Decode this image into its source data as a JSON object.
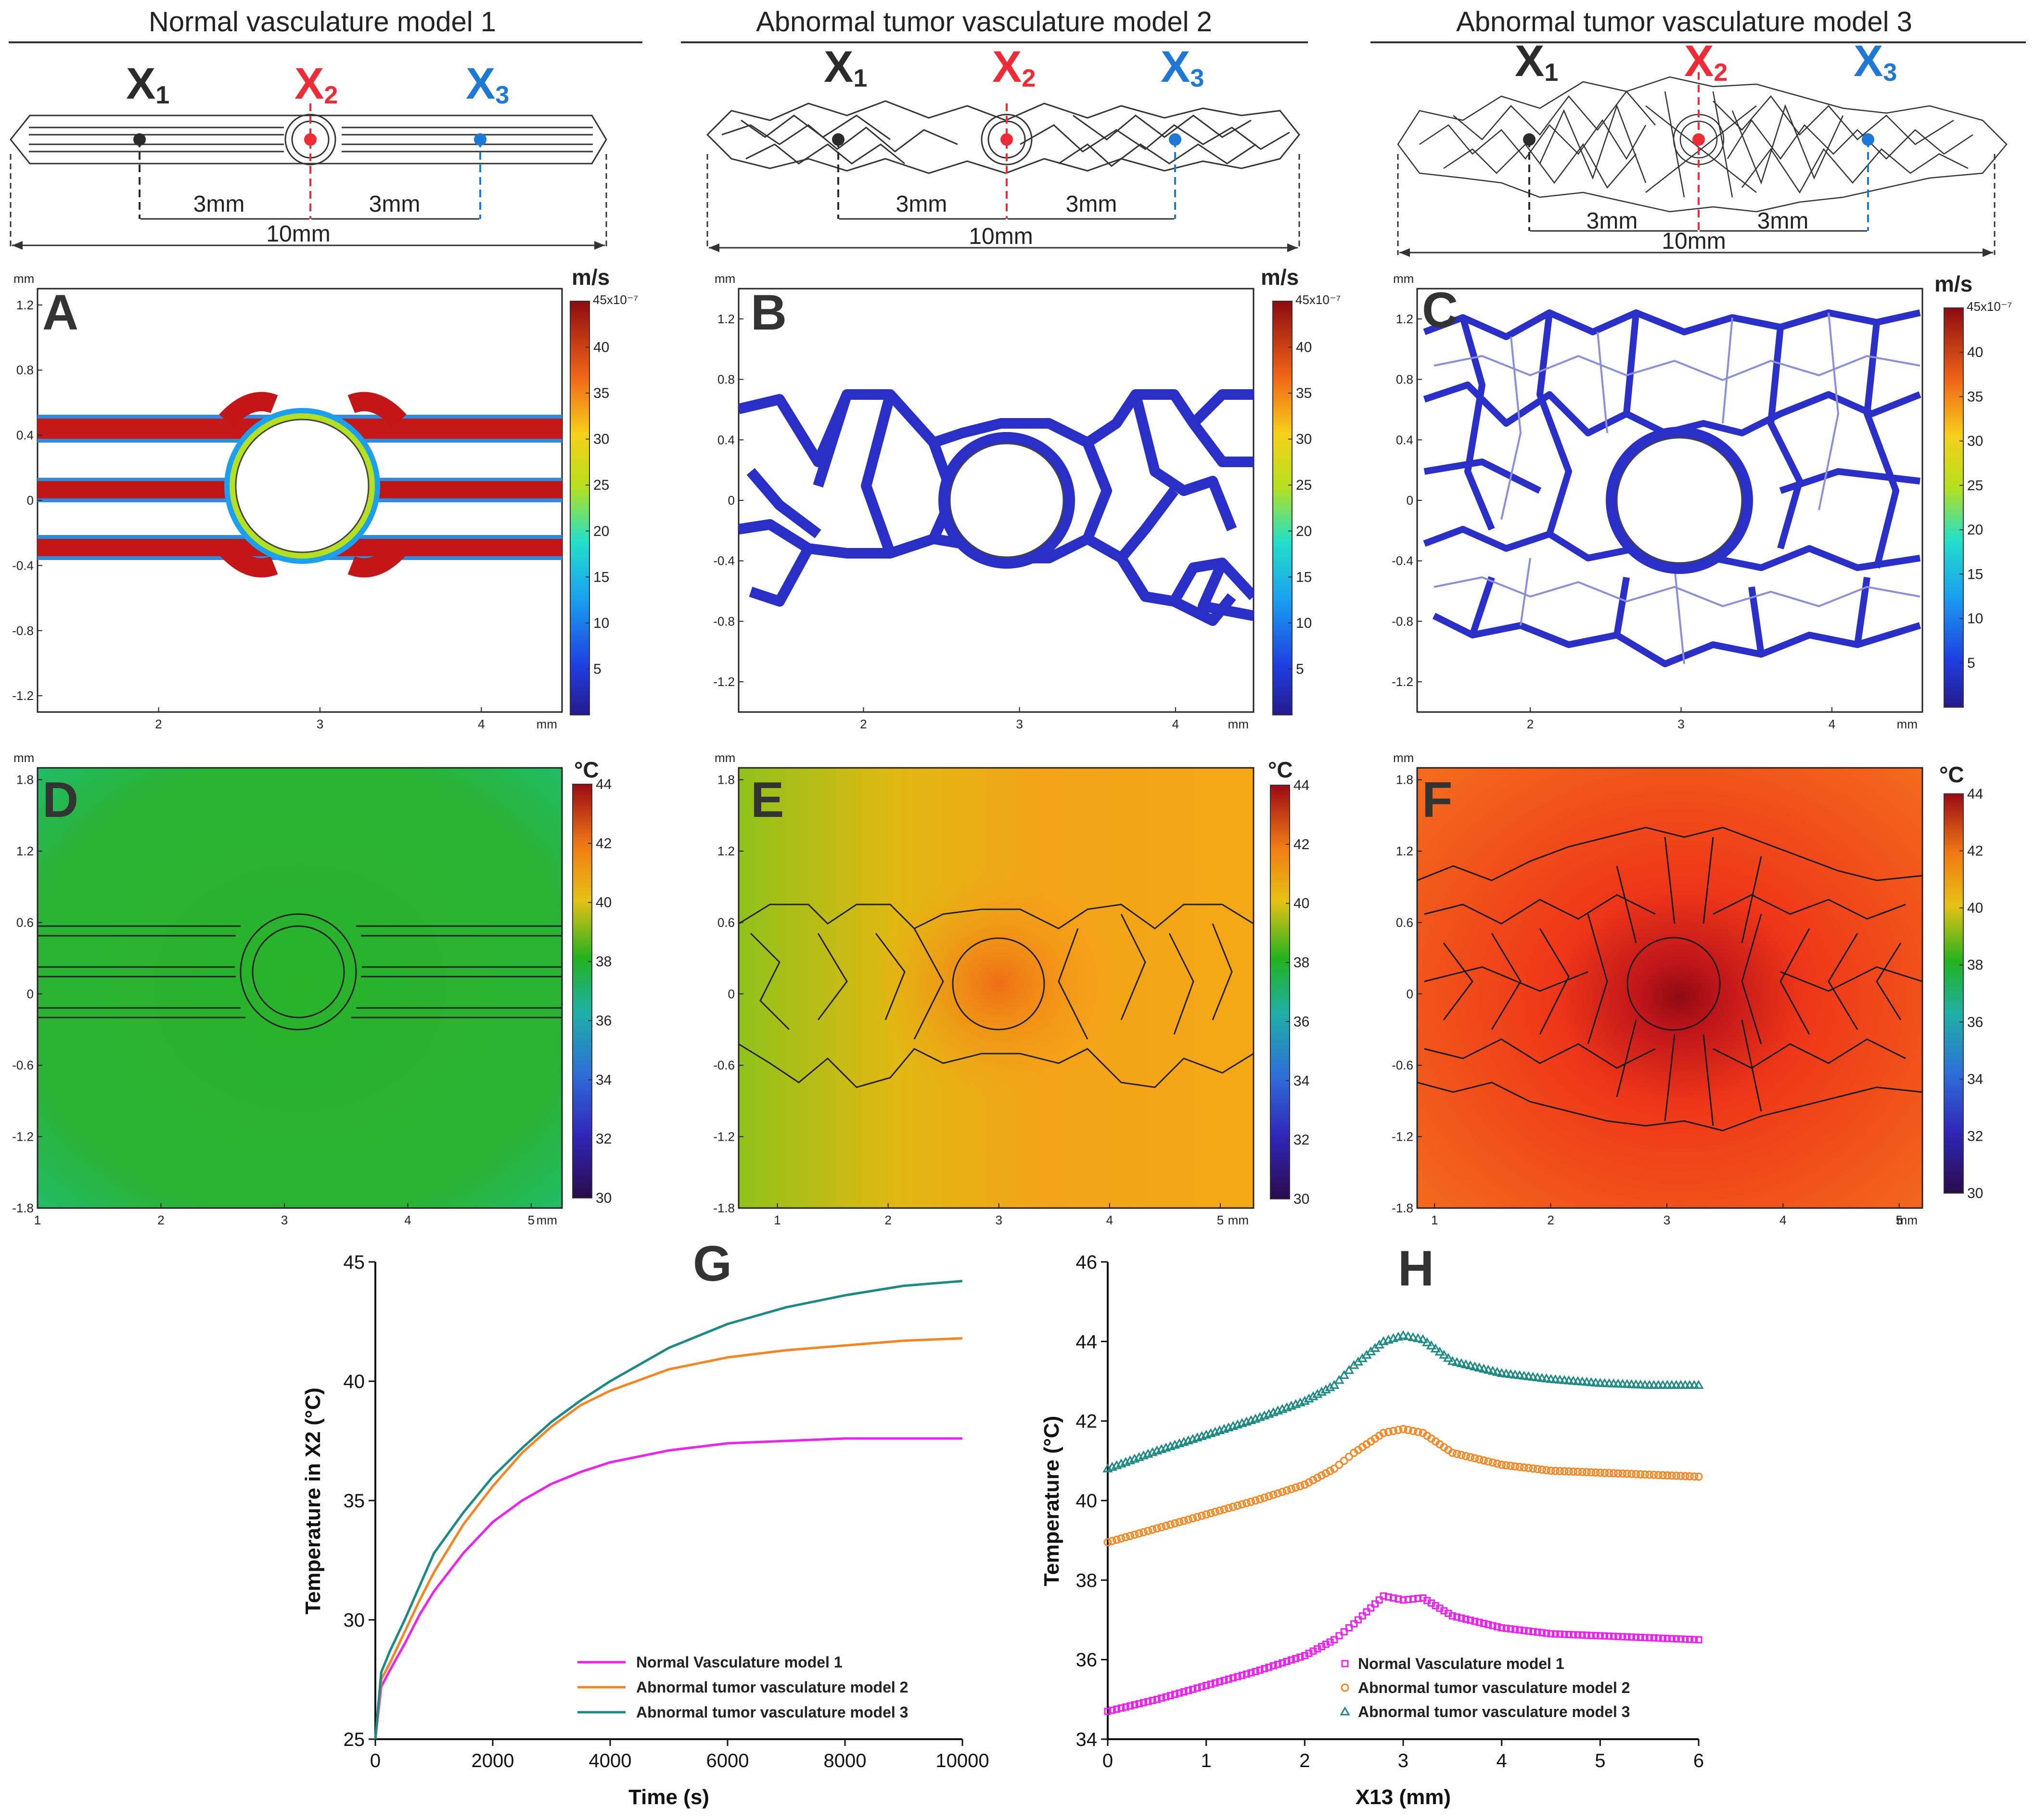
{
  "titles": [
    "Normal vasculature model 1",
    "Abnormal tumor vasculature model 2",
    "Abnormal tumor vasculature model 3"
  ],
  "markers": {
    "x1": "X",
    "x2": "X",
    "x3": "X",
    "s1": "1",
    "s2": "2",
    "s3": "3"
  },
  "dims": {
    "left": "3mm",
    "right": "3mm",
    "total": "10mm"
  },
  "panel_labels": {
    "A": "A",
    "B": "B",
    "C": "C",
    "D": "D",
    "E": "E",
    "F": "F",
    "G": "G",
    "H": "H"
  },
  "units": {
    "velocity": "m/s",
    "temperature": "°C",
    "mm": "mm",
    "scale": "45x10⁻⁷"
  },
  "colorbars": {
    "velocity_ticks": [
      "40",
      "35",
      "30",
      "25",
      "20",
      "15",
      "10",
      "5"
    ],
    "temp_ticks": [
      "44",
      "42",
      "40",
      "38",
      "36",
      "34",
      "32",
      "30"
    ]
  },
  "flow_axes": {
    "y_ticks": [
      "1.2",
      "0.8",
      "0.4",
      "0",
      "-0.4",
      "-0.8",
      "-1.2"
    ],
    "x_ticks": [
      "2",
      "3",
      "4"
    ]
  },
  "temp_axes": {
    "y_ticks": [
      "1.8",
      "1.2",
      "0.6",
      "0",
      "-0.6",
      "-1.2",
      "-1.8"
    ],
    "x_ticks": [
      "1",
      "2",
      "3",
      "4",
      "5"
    ]
  },
  "colors": {
    "x1": "#2b2b2b",
    "x2": "#ef2b36",
    "x3": "#1e78d6",
    "m1": "#ee22ee",
    "m2": "#f5861f",
    "m3": "#1a8a82"
  },
  "chart_data": [
    {
      "type": "line",
      "title": "G",
      "xlabel": "Time (s)",
      "ylabel": "Temperature in X2 (°C)",
      "xlim": [
        0,
        10000
      ],
      "ylim": [
        25,
        45
      ],
      "x_ticks": [
        "0",
        "2000",
        "4000",
        "6000",
        "8000",
        "10000"
      ],
      "y_ticks": [
        "25",
        "30",
        "35",
        "40",
        "45"
      ],
      "legend": "bottom-right",
      "x": [
        0,
        100,
        250,
        500,
        750,
        1000,
        1500,
        2000,
        2500,
        3000,
        3500,
        4000,
        5000,
        6000,
        7000,
        8000,
        9000,
        10000
      ],
      "series": [
        {
          "name": "Normal Vasculature model 1",
          "values": [
            25.0,
            27.2,
            27.9,
            29.0,
            30.2,
            31.2,
            32.8,
            34.1,
            35.0,
            35.7,
            36.2,
            36.6,
            37.1,
            37.4,
            37.5,
            37.6,
            37.6,
            37.6
          ]
        },
        {
          "name": "Abnormal tumor vasculature model 2",
          "values": [
            25.0,
            27.5,
            28.2,
            29.5,
            30.8,
            32.0,
            34.0,
            35.6,
            37.0,
            38.1,
            39.0,
            39.6,
            40.5,
            41.0,
            41.3,
            41.5,
            41.7,
            41.8
          ]
        },
        {
          "name": "Abnormal tumor vasculature model 3",
          "values": [
            25.0,
            27.8,
            28.7,
            30.0,
            31.4,
            32.8,
            34.5,
            36.0,
            37.2,
            38.3,
            39.2,
            40.0,
            41.4,
            42.4,
            43.1,
            43.6,
            44.0,
            44.2
          ]
        }
      ]
    },
    {
      "type": "scatter",
      "title": "H",
      "xlabel": "X13 (mm)",
      "ylabel": "Temperature (°C)",
      "xlim": [
        0,
        6
      ],
      "ylim": [
        34,
        46
      ],
      "x_ticks": [
        "0",
        "1",
        "2",
        "3",
        "4",
        "5",
        "6"
      ],
      "y_ticks": [
        "34",
        "36",
        "38",
        "40",
        "42",
        "44",
        "46"
      ],
      "legend": "bottom-right",
      "x": [
        0,
        0.5,
        1.0,
        1.5,
        2.0,
        2.3,
        2.5,
        2.8,
        3.0,
        3.2,
        3.5,
        4.0,
        4.5,
        5.0,
        5.5,
        6.0
      ],
      "series": [
        {
          "name": "Normal Vasculature model 1",
          "values": [
            34.7,
            35.0,
            35.35,
            35.7,
            36.1,
            36.5,
            36.9,
            37.6,
            37.5,
            37.55,
            37.1,
            36.8,
            36.65,
            36.6,
            36.55,
            36.5
          ]
        },
        {
          "name": "Abnormal tumor vasculature model 2",
          "values": [
            38.95,
            39.3,
            39.65,
            40.0,
            40.4,
            40.8,
            41.2,
            41.7,
            41.8,
            41.7,
            41.2,
            40.9,
            40.75,
            40.7,
            40.65,
            40.6
          ]
        },
        {
          "name": "Abnormal tumor vasculature model 3",
          "values": [
            40.8,
            41.25,
            41.65,
            42.05,
            42.5,
            42.9,
            43.4,
            44.0,
            44.15,
            44.05,
            43.5,
            43.2,
            43.05,
            42.95,
            42.9,
            42.9
          ]
        }
      ]
    }
  ]
}
